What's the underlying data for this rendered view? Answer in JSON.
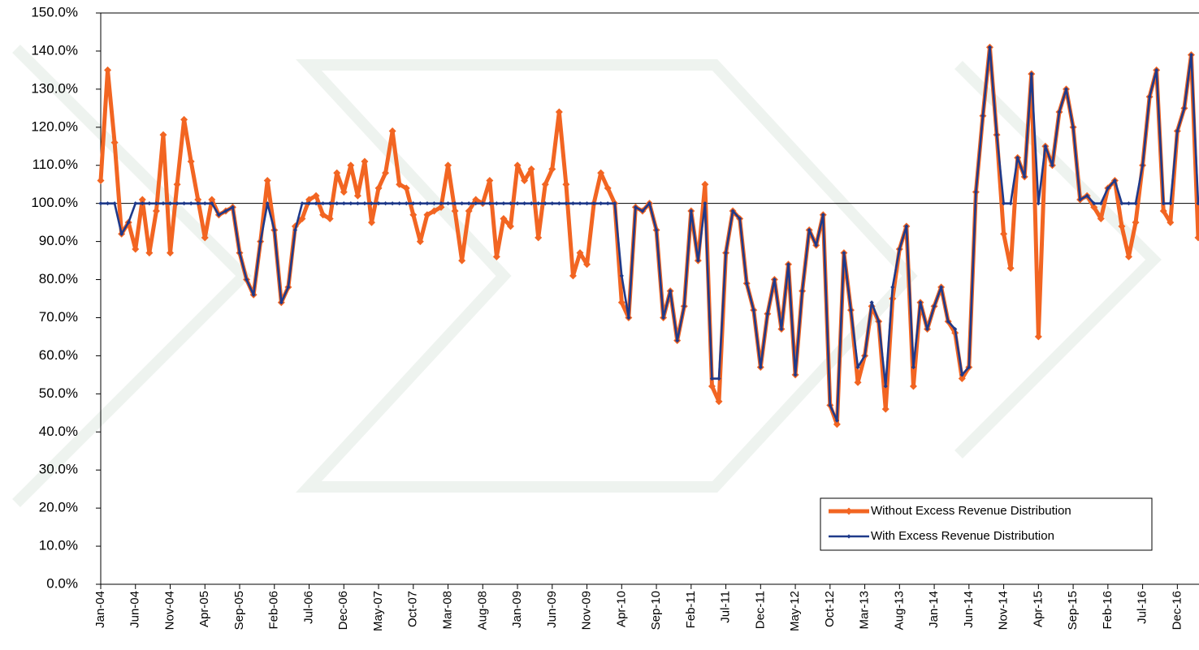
{
  "chart_data": {
    "type": "line",
    "categories": [
      "Jan-04",
      null,
      null,
      null,
      null,
      "Jun-04",
      null,
      null,
      null,
      null,
      "Nov-04",
      null,
      null,
      null,
      null,
      "Apr-05",
      null,
      null,
      null,
      null,
      "Sep-05",
      null,
      null,
      null,
      null,
      "Feb-06",
      null,
      null,
      null,
      null,
      "Jul-06",
      null,
      null,
      null,
      null,
      "Dec-06",
      null,
      null,
      null,
      null,
      "May-07",
      null,
      null,
      null,
      null,
      "Oct-07",
      null,
      null,
      null,
      null,
      "Mar-08",
      null,
      null,
      null,
      null,
      "Aug-08",
      null,
      null,
      null,
      null,
      "Jan-09",
      null,
      null,
      null,
      null,
      "Jun-09",
      null,
      null,
      null,
      null,
      "Nov-09",
      null,
      null,
      null,
      null,
      "Apr-10",
      null,
      null,
      null,
      null,
      "Sep-10",
      null,
      null,
      null,
      null,
      "Feb-11",
      null,
      null,
      null,
      null,
      "Jul-11",
      null,
      null,
      null,
      null,
      "Dec-11",
      null,
      null,
      null,
      null,
      "May-12",
      null,
      null,
      null,
      null,
      "Oct-12",
      null,
      null,
      null,
      null,
      "Mar-13",
      null,
      null,
      null,
      null,
      "Aug-13",
      null,
      null,
      null,
      null,
      "Jan-14",
      null,
      null,
      null,
      null,
      "Jun-14",
      null,
      null,
      null,
      null,
      "Nov-14",
      null,
      null,
      null,
      null,
      "Apr-15",
      null,
      null,
      null,
      null,
      "Sep-15",
      null,
      null,
      null,
      null,
      "Feb-16",
      null,
      null,
      null,
      null,
      "Jul-16",
      null,
      null,
      null,
      null,
      "Dec-16",
      null,
      null,
      null
    ],
    "series": [
      {
        "name": "Without Excess Revenue Distribution",
        "color": "#f26522",
        "values": [
          106,
          135,
          116,
          92,
          95,
          88,
          101,
          87,
          98,
          118,
          87,
          105,
          122,
          111,
          101,
          91,
          101,
          97,
          98,
          99,
          87,
          80,
          76,
          90,
          106,
          93,
          74,
          78,
          94,
          96,
          101,
          102,
          97,
          96,
          108,
          103,
          110,
          102,
          111,
          95,
          104,
          108,
          119,
          105,
          104,
          97,
          90,
          97,
          98,
          99,
          110,
          98,
          85,
          98,
          101,
          100,
          106,
          86,
          96,
          94,
          110,
          106,
          109,
          91,
          105,
          109,
          124,
          105,
          81,
          87,
          84,
          100,
          108,
          104,
          100,
          74,
          70,
          99,
          98,
          100,
          93,
          70,
          77,
          64,
          73,
          98,
          85,
          105,
          52,
          48,
          87,
          98,
          96,
          79,
          72,
          57,
          71,
          80,
          67,
          84,
          55,
          77,
          93,
          89,
          97,
          47,
          42,
          87,
          72,
          53,
          60,
          73,
          69,
          46,
          75,
          88,
          94,
          52,
          74,
          67,
          73,
          78,
          69,
          66,
          54,
          57,
          103,
          123,
          141,
          118,
          92,
          83,
          112,
          107,
          134,
          65,
          115,
          110,
          124,
          130,
          120,
          101,
          102,
          99,
          96,
          104,
          106,
          94,
          86,
          95,
          110,
          128,
          135,
          98,
          95,
          119,
          125,
          139,
          91
        ]
      },
      {
        "name": "With Excess Revenue Distribution",
        "color": "#1f3a8a",
        "values": [
          100,
          100,
          100,
          92,
          95,
          100,
          100,
          100,
          100,
          100,
          100,
          100,
          100,
          100,
          100,
          100,
          100,
          97,
          98,
          99,
          87,
          80,
          76,
          90,
          100,
          93,
          74,
          78,
          93,
          100,
          100,
          100,
          100,
          100,
          100,
          100,
          100,
          100,
          100,
          100,
          100,
          100,
          100,
          100,
          100,
          100,
          100,
          100,
          100,
          100,
          100,
          100,
          100,
          100,
          100,
          100,
          100,
          100,
          100,
          100,
          100,
          100,
          100,
          100,
          100,
          100,
          100,
          100,
          100,
          100,
          100,
          100,
          100,
          100,
          100,
          81,
          70,
          99,
          98,
          100,
          93,
          70,
          77,
          64,
          73,
          98,
          85,
          100,
          54,
          54,
          87,
          98,
          96,
          79,
          72,
          57,
          71,
          80,
          67,
          84,
          55,
          77,
          93,
          89,
          97,
          47,
          43,
          87,
          72,
          57,
          60,
          74,
          69,
          52,
          78,
          88,
          94,
          57,
          74,
          67,
          73,
          78,
          69,
          67,
          55,
          57,
          103,
          123,
          141,
          118,
          100,
          100,
          112,
          107,
          134,
          100,
          115,
          110,
          124,
          130,
          120,
          101,
          102,
          100,
          100,
          104,
          106,
          100,
          100,
          100,
          110,
          128,
          135,
          100,
          100,
          119,
          125,
          139,
          100
        ]
      }
    ],
    "ylim": [
      0,
      150
    ],
    "yticks": [
      {
        "value": 0,
        "label": "0.0%"
      },
      {
        "value": 10,
        "label": "10.0%"
      },
      {
        "value": 20,
        "label": "20.0%"
      },
      {
        "value": 30,
        "label": "30.0%"
      },
      {
        "value": 40,
        "label": "40.0%"
      },
      {
        "value": 50,
        "label": "50.0%"
      },
      {
        "value": 60,
        "label": "60.0%"
      },
      {
        "value": 70,
        "label": "70.0%"
      },
      {
        "value": 80,
        "label": "80.0%"
      },
      {
        "value": 90,
        "label": "90.0%"
      },
      {
        "value": 100,
        "label": "100.0%"
      },
      {
        "value": 110,
        "label": "110.0%"
      },
      {
        "value": 120,
        "label": "120.0%"
      },
      {
        "value": 130,
        "label": "130.0%"
      },
      {
        "value": 140,
        "label": "140.0%"
      },
      {
        "value": 150,
        "label": "150.0%"
      }
    ],
    "reference_line": 100,
    "grid": false,
    "legend": "lower right"
  }
}
